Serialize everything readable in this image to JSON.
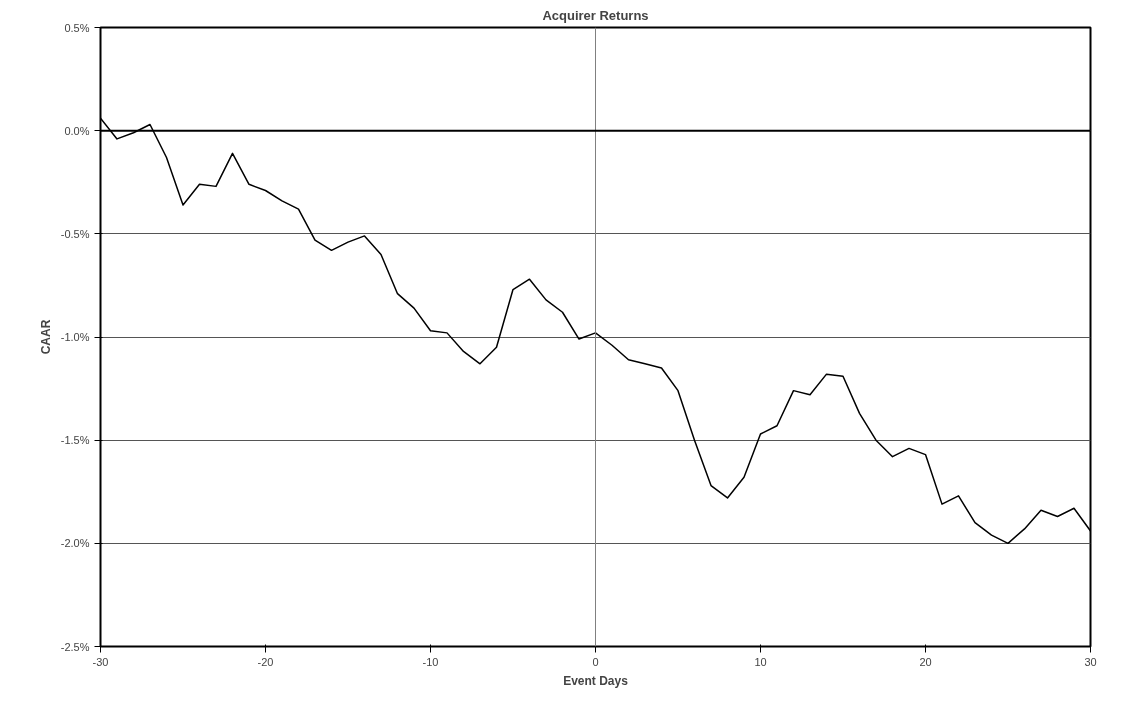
{
  "chart_data": {
    "type": "line",
    "title": "Acquirer Returns",
    "xlabel": "Event Days",
    "ylabel": "CAAR",
    "x": [
      -30,
      -29,
      -28,
      -27,
      -26,
      -25,
      -24,
      -23,
      -22,
      -21,
      -20,
      -19,
      -18,
      -17,
      -16,
      -15,
      -14,
      -13,
      -12,
      -11,
      -10,
      -9,
      -8,
      -7,
      -6,
      -5,
      -4,
      -3,
      -2,
      -1,
      0,
      1,
      2,
      3,
      4,
      5,
      6,
      7,
      8,
      9,
      10,
      11,
      12,
      13,
      14,
      15,
      16,
      17,
      18,
      19,
      20,
      21,
      22,
      23,
      24,
      25,
      26,
      27,
      28,
      29,
      30
    ],
    "series": [
      {
        "color": "#000000",
        "values": [
          0.06,
          -0.04,
          -0.01,
          0.03,
          -0.13,
          -0.36,
          -0.26,
          -0.27,
          -0.11,
          -0.26,
          -0.29,
          -0.34,
          -0.38,
          -0.53,
          -0.58,
          -0.54,
          -0.51,
          -0.6,
          -0.79,
          -0.86,
          -0.97,
          -0.98,
          -1.07,
          -1.13,
          -1.05,
          -0.77,
          -0.72,
          -0.82,
          -0.88,
          -1.01,
          -0.98,
          -1.04,
          -1.11,
          -1.13,
          -1.15,
          -1.26,
          -1.5,
          -1.72,
          -1.78,
          -1.68,
          -1.47,
          -1.43,
          -1.26,
          -1.28,
          -1.18,
          -1.19,
          -1.37,
          -1.5,
          -1.58,
          -1.54,
          -1.57,
          -1.81,
          -1.77,
          -1.9,
          -1.96,
          -2.0,
          -1.93,
          -1.84,
          -1.87,
          -1.83,
          -1.94
        ]
      }
    ],
    "xlim": [
      -30,
      30
    ],
    "xticks": [
      -30,
      -20,
      -10,
      0,
      10,
      20,
      30
    ],
    "ylim": [
      -2.5,
      0.5
    ],
    "yticks": [
      {
        "value": -2.5,
        "label": "-2.5%"
      },
      {
        "value": -2.0,
        "label": "-2.0%"
      },
      {
        "value": -1.5,
        "label": "-1.5%"
      },
      {
        "value": -1.0,
        "label": "-1.0%"
      },
      {
        "value": -0.5,
        "label": "-0.5%"
      },
      {
        "value": 0,
        "label": "0.0%"
      },
      {
        "value": 0.5,
        "label": "0.5%"
      }
    ],
    "grid": "y",
    "marker": "none",
    "line_style": "solid",
    "ref_lines": [
      {
        "axis": "x",
        "value": 0,
        "color": "#808080"
      },
      {
        "axis": "y",
        "value": 0,
        "color": "#000000"
      }
    ]
  }
}
